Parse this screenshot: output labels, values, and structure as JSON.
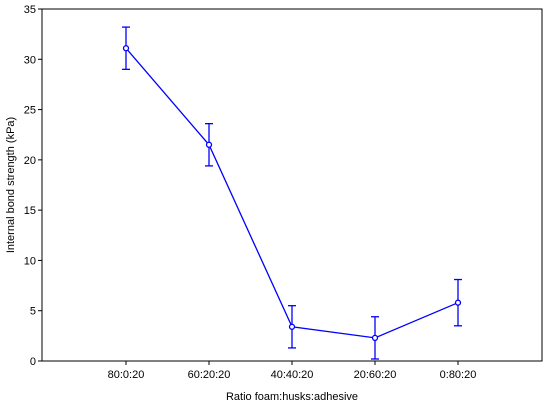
{
  "chart_data": {
    "type": "line",
    "title": "",
    "xlabel": "Ratio foam:husks:adhesive",
    "ylabel": "Internal bond strength (kPa)",
    "categories": [
      "80:0:20",
      "60:20:20",
      "40:40:20",
      "20:60:20",
      "0:80:20"
    ],
    "series": [
      {
        "values": [
          31.1,
          21.5,
          3.4,
          2.3,
          5.8
        ],
        "error_low": [
          29.0,
          19.4,
          1.3,
          0.2,
          3.5
        ],
        "error_high": [
          33.2,
          23.6,
          5.5,
          4.4,
          8.1
        ],
        "color": "#0000ff"
      }
    ],
    "ylim": [
      0,
      35
    ],
    "yticks": [
      0,
      5,
      10,
      15,
      20,
      25,
      30,
      35
    ],
    "grid": false,
    "legend": "none"
  }
}
